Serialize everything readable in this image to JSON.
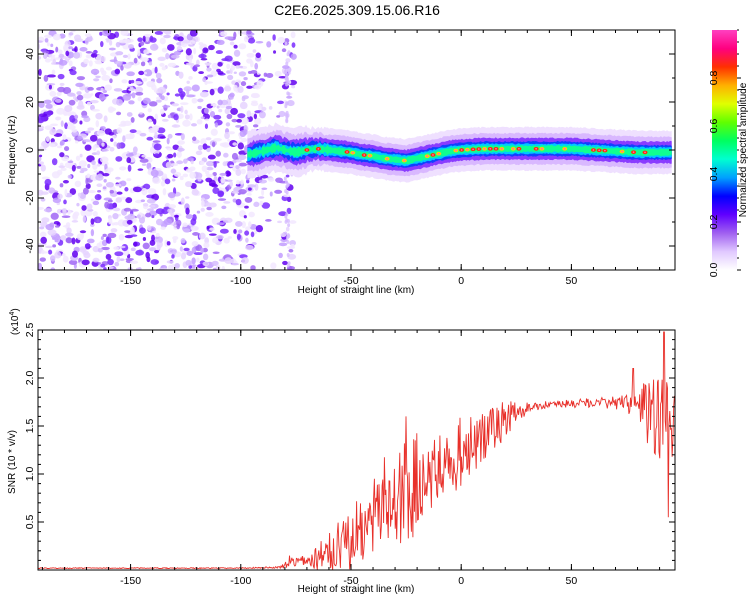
{
  "figure": {
    "title": "C2E6.2025.309.15.06.R16"
  },
  "chart_data": [
    {
      "type": "heatmap",
      "title": "C2E6.2025.309.15.06.R16",
      "xlabel": "Height of straight line (km)",
      "ylabel": "Frequency (Hz)",
      "xlim": [
        -192,
        97
      ],
      "ylim": [
        -50,
        50
      ],
      "xticks": [
        -150,
        -100,
        -50,
        0,
        50
      ],
      "yticks": [
        -40,
        -20,
        0,
        20,
        40
      ],
      "colorbar": {
        "label": "Normalized spectral amplitude",
        "range": [
          0,
          1
        ],
        "ticks": [
          "0.0",
          "0.2",
          "0.4",
          "0.6",
          "0.8"
        ],
        "colors": [
          "#ffffff",
          "#e0c8ff",
          "#a060f0",
          "#6000ff",
          "#0000ff",
          "#00a0ff",
          "#00ffd0",
          "#00ff60",
          "#60ff00",
          "#e0ff00",
          "#ffb000",
          "#ff3000",
          "#ff0080",
          "#ff40c0"
        ]
      },
      "noise_region_x": [
        -192,
        -80
      ],
      "ridge": {
        "x": [
          -97,
          -92,
          -88,
          -84,
          -80,
          -75,
          -70,
          -65,
          -60,
          -55,
          -50,
          -45,
          -40,
          -35,
          -30,
          -25,
          -20,
          -15,
          -10,
          -5,
          0,
          10,
          20,
          30,
          40,
          50,
          60,
          70,
          80,
          90,
          96
        ],
        "freq": [
          -2,
          -1,
          0,
          1,
          0,
          -1,
          0,
          0.5,
          0,
          -0.5,
          -1,
          -2,
          -2.5,
          -3.5,
          -4,
          -4.5,
          -3.5,
          -2.5,
          -1.5,
          -0.5,
          0,
          0.5,
          0.5,
          0.5,
          0.5,
          0.5,
          0,
          -0.5,
          -1,
          -1,
          -1
        ]
      }
    },
    {
      "type": "line",
      "xlabel": "Height of straight line (km)",
      "ylabel": "SNR (10 * v/v)",
      "yscale_label": "(x10",
      "yscale_exponent": "4",
      "yscale_suffix": ")",
      "xlim": [
        -192,
        97
      ],
      "ylim": [
        0,
        2.5
      ],
      "xticks": [
        -150,
        -100,
        -50,
        0,
        50
      ],
      "yticks": [
        0.5,
        1.0,
        1.5,
        2.0,
        2.5
      ],
      "series": [
        {
          "name": "SNR",
          "color": "#e8302a",
          "envelope_x": [
            -192,
            -100,
            -82,
            -78,
            -70,
            -60,
            -50,
            -40,
            -30,
            -20,
            -10,
            0,
            10,
            20,
            30,
            40,
            50,
            60,
            70,
            80,
            85,
            90,
            97
          ],
          "envelope_y": [
            0.02,
            0.02,
            0.03,
            0.08,
            0.1,
            0.18,
            0.35,
            0.6,
            0.8,
            0.95,
            1.1,
            1.25,
            1.45,
            1.6,
            1.7,
            1.73,
            1.74,
            1.75,
            1.75,
            1.73,
            1.7,
            1.6,
            1.45
          ],
          "spread": [
            0.005,
            0.005,
            0.01,
            0.05,
            0.06,
            0.25,
            0.3,
            0.45,
            0.5,
            0.5,
            0.35,
            0.35,
            0.3,
            0.2,
            0.06,
            0.04,
            0.04,
            0.05,
            0.06,
            0.12,
            0.35,
            0.5,
            0.45
          ],
          "peaks": [
            {
              "x": -78,
              "y": 0.15
            },
            {
              "x": -25,
              "y": 1.6
            },
            {
              "x": 78,
              "y": 2.1
            },
            {
              "x": 92,
              "y": 2.48
            },
            {
              "x": 94,
              "y": 0.55
            }
          ]
        }
      ]
    }
  ]
}
